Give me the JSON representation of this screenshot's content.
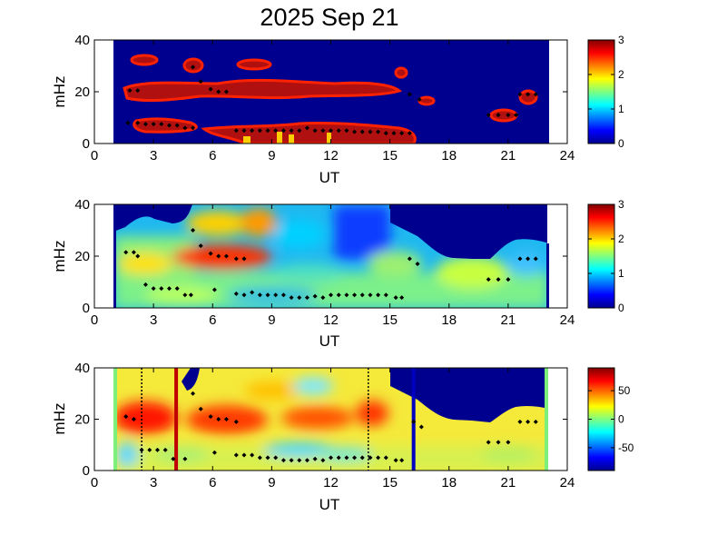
{
  "figure": {
    "title": "2025 Sep 21"
  },
  "colors": {
    "blue": "#00008f",
    "red": "#c00000",
    "black": "#000000"
  },
  "chart_data": [
    {
      "type": "heatmap",
      "xlabel": "UT",
      "ylabel": "mHz",
      "xlim": [
        0,
        24
      ],
      "ylim": [
        0,
        40
      ],
      "xticks": [
        "0",
        "3",
        "6",
        "9",
        "12",
        "15",
        "18",
        "21",
        "24"
      ],
      "yticks": [
        "0",
        "20",
        "40"
      ],
      "data_range": [
        1,
        23
      ],
      "colorbar": {
        "range": [
          0,
          3
        ],
        "ticks": [
          "0",
          "1",
          "2",
          "3"
        ]
      },
      "peaks": [
        [
          1.8,
          20.5
        ],
        [
          2.2,
          20.5
        ],
        [
          1.7,
          8
        ],
        [
          2.2,
          8
        ],
        [
          2.6,
          7.5
        ],
        [
          3,
          7.5
        ],
        [
          3.4,
          7.5
        ],
        [
          3.8,
          7
        ],
        [
          4.2,
          7
        ],
        [
          4.6,
          6
        ],
        [
          5,
          6
        ],
        [
          5.4,
          24
        ],
        [
          5,
          29.5
        ],
        [
          5.9,
          21
        ],
        [
          6.3,
          20
        ],
        [
          6.7,
          20
        ],
        [
          7.2,
          5
        ],
        [
          7.6,
          5
        ],
        [
          8,
          5
        ],
        [
          8.4,
          5
        ],
        [
          8.8,
          5
        ],
        [
          9.2,
          5
        ],
        [
          9.6,
          5
        ],
        [
          10,
          5
        ],
        [
          10.4,
          5
        ],
        [
          10.8,
          6
        ],
        [
          11.2,
          5
        ],
        [
          11.6,
          5
        ],
        [
          12,
          5
        ],
        [
          12.4,
          5
        ],
        [
          12.8,
          5
        ],
        [
          13.2,
          4.5
        ],
        [
          13.6,
          4.5
        ],
        [
          14,
          4.5
        ],
        [
          14.4,
          4.5
        ],
        [
          14.8,
          4
        ],
        [
          15.2,
          4
        ],
        [
          15.6,
          4
        ],
        [
          16,
          4
        ],
        [
          16,
          19
        ],
        [
          16.5,
          17
        ],
        [
          20,
          11
        ],
        [
          20.5,
          11
        ],
        [
          21,
          11
        ],
        [
          21.4,
          11
        ],
        [
          21.6,
          19
        ],
        [
          22,
          19
        ],
        [
          22.4,
          19
        ]
      ]
    },
    {
      "type": "heatmap",
      "xlabel": "UT",
      "ylabel": "mHz",
      "xlim": [
        0,
        24
      ],
      "ylim": [
        0,
        40
      ],
      "xticks": [
        "0",
        "3",
        "6",
        "9",
        "12",
        "15",
        "18",
        "21",
        "24"
      ],
      "yticks": [
        "0",
        "20",
        "40"
      ],
      "data_range": [
        1,
        23
      ],
      "colorbar": {
        "range": [
          0,
          3
        ],
        "ticks": [
          "0",
          "1",
          "2",
          "3"
        ]
      },
      "peaks": [
        [
          1.6,
          21.5
        ],
        [
          2.0,
          21.5
        ],
        [
          2.2,
          20
        ],
        [
          2.6,
          9
        ],
        [
          3,
          7.5
        ],
        [
          3.4,
          7.5
        ],
        [
          3.8,
          7.5
        ],
        [
          4.2,
          7.5
        ],
        [
          4.6,
          5
        ],
        [
          4.9,
          5
        ],
        [
          5.4,
          24
        ],
        [
          5,
          30
        ],
        [
          5.9,
          21
        ],
        [
          6.3,
          20
        ],
        [
          6.7,
          20
        ],
        [
          7.2,
          19
        ],
        [
          7.6,
          19
        ],
        [
          6.1,
          7
        ],
        [
          7.2,
          5.5
        ],
        [
          7.6,
          5
        ],
        [
          8,
          6
        ],
        [
          8.4,
          5
        ],
        [
          8.8,
          5
        ],
        [
          9.2,
          5
        ],
        [
          9.6,
          5
        ],
        [
          10,
          4
        ],
        [
          10.4,
          4
        ],
        [
          10.8,
          4
        ],
        [
          11.2,
          4.5
        ],
        [
          11.6,
          4
        ],
        [
          12,
          5
        ],
        [
          12.4,
          5
        ],
        [
          12.8,
          5
        ],
        [
          13.2,
          5
        ],
        [
          13.6,
          5
        ],
        [
          14,
          5
        ],
        [
          14.4,
          5
        ],
        [
          14.8,
          5
        ],
        [
          15.3,
          4
        ],
        [
          15.6,
          4
        ],
        [
          16,
          19
        ],
        [
          16.4,
          17
        ],
        [
          20,
          11
        ],
        [
          20.5,
          11
        ],
        [
          21,
          11
        ],
        [
          21.6,
          19
        ],
        [
          22,
          19
        ],
        [
          22.4,
          19
        ]
      ]
    },
    {
      "type": "heatmap",
      "xlabel": "UT",
      "ylabel": "mHz",
      "xlim": [
        0,
        24
      ],
      "ylim": [
        0,
        40
      ],
      "xticks": [
        "0",
        "3",
        "6",
        "9",
        "12",
        "15",
        "18",
        "21",
        "24"
      ],
      "yticks": [
        "0",
        "20",
        "40"
      ],
      "data_range": [
        1,
        23
      ],
      "colorbar": {
        "range": [
          -90,
          90
        ],
        "ticks": [
          "50",
          "0",
          "-50"
        ]
      },
      "vertical_lines": [
        {
          "x": 4.15,
          "style": "solid",
          "color": "#c00000"
        },
        {
          "x": 16.2,
          "style": "solid",
          "color": "#0000c0"
        },
        {
          "x": 2.4,
          "style": "dotted",
          "color": "#000000"
        },
        {
          "x": 13.9,
          "style": "dotted",
          "color": "#000000"
        }
      ],
      "peaks": [
        [
          1.6,
          21
        ],
        [
          2.0,
          20
        ],
        [
          2.4,
          8
        ],
        [
          2.8,
          8
        ],
        [
          3.2,
          8
        ],
        [
          3.6,
          8
        ],
        [
          4.0,
          4.5
        ],
        [
          4.6,
          4.5
        ],
        [
          5.4,
          24
        ],
        [
          5,
          30
        ],
        [
          5.9,
          21
        ],
        [
          6.3,
          20
        ],
        [
          6.7,
          20
        ],
        [
          7.2,
          19
        ],
        [
          6.1,
          7
        ],
        [
          7.2,
          6
        ],
        [
          7.6,
          6
        ],
        [
          8,
          6
        ],
        [
          8.4,
          5
        ],
        [
          8.8,
          5
        ],
        [
          9.2,
          5
        ],
        [
          9.6,
          4
        ],
        [
          10,
          4
        ],
        [
          10.4,
          4
        ],
        [
          10.8,
          4
        ],
        [
          11.2,
          4.5
        ],
        [
          11.6,
          4
        ],
        [
          12,
          5
        ],
        [
          12.4,
          5
        ],
        [
          12.8,
          5
        ],
        [
          13.2,
          5
        ],
        [
          13.6,
          5
        ],
        [
          14,
          5
        ],
        [
          14.4,
          5
        ],
        [
          14.8,
          5
        ],
        [
          15.3,
          4
        ],
        [
          15.6,
          4
        ],
        [
          16.2,
          19
        ],
        [
          16.6,
          17
        ],
        [
          20,
          11
        ],
        [
          20.5,
          11
        ],
        [
          21,
          11
        ],
        [
          21.6,
          19
        ],
        [
          22,
          19
        ],
        [
          22.4,
          19
        ]
      ]
    }
  ]
}
